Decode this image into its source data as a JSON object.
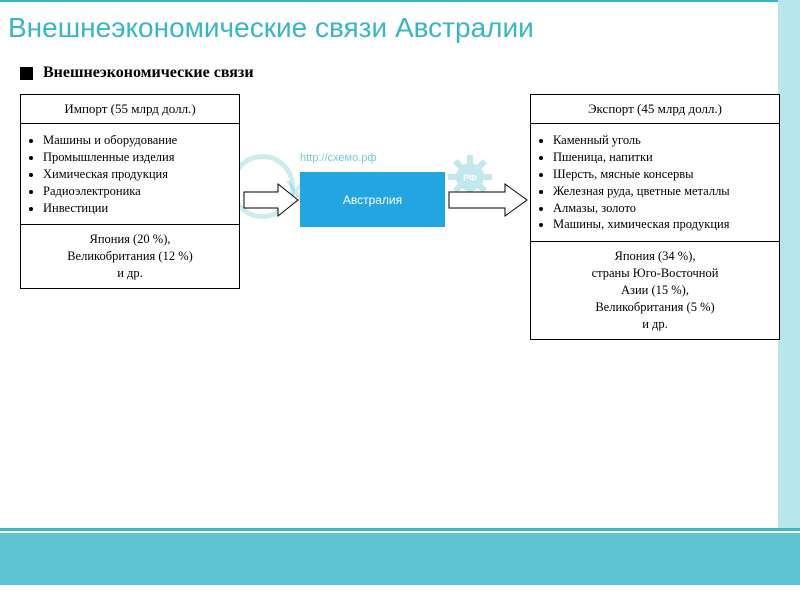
{
  "page": {
    "title": "Внешнеэкономические связи Австралии",
    "subtitle": "Внешнеэкономические связи"
  },
  "colors": {
    "accent": "#3ab5c4",
    "center_box": "#22a5e0",
    "right_strip": "#b8e6ed",
    "bottom_bar": "#5fc4d1"
  },
  "import_box": {
    "header": "Импорт (55 млрд долл.)",
    "items": [
      "Машины и оборудование",
      "Промышленные изделия",
      "Химическая продукция",
      "Радиоэлектроника",
      "Инвестиции"
    ],
    "footer": "Япония (20 %),\nВеликобритания (12 %)\nи др."
  },
  "center": {
    "label": "Австралия",
    "watermark_url": "http://схемо.рф",
    "watermark_text": "хемо",
    "watermark_badge": "РФ"
  },
  "export_box": {
    "header": "Экспорт (45 млрд долл.)",
    "items": [
      "Каменный уголь",
      "Пшеница, напитки",
      "Шерсть, мясные консервы",
      "Железная руда, цветные металлы",
      "Алмазы, золото",
      "Машины, химическая продукция"
    ],
    "footer": "Япония (34 %),\nстраны Юго-Восточной\nАзии (15 %),\nВеликобритания (5 %)\nи др."
  },
  "arrows": {
    "fill": "#ffffff",
    "stroke": "#000000",
    "stroke_width": 1
  }
}
